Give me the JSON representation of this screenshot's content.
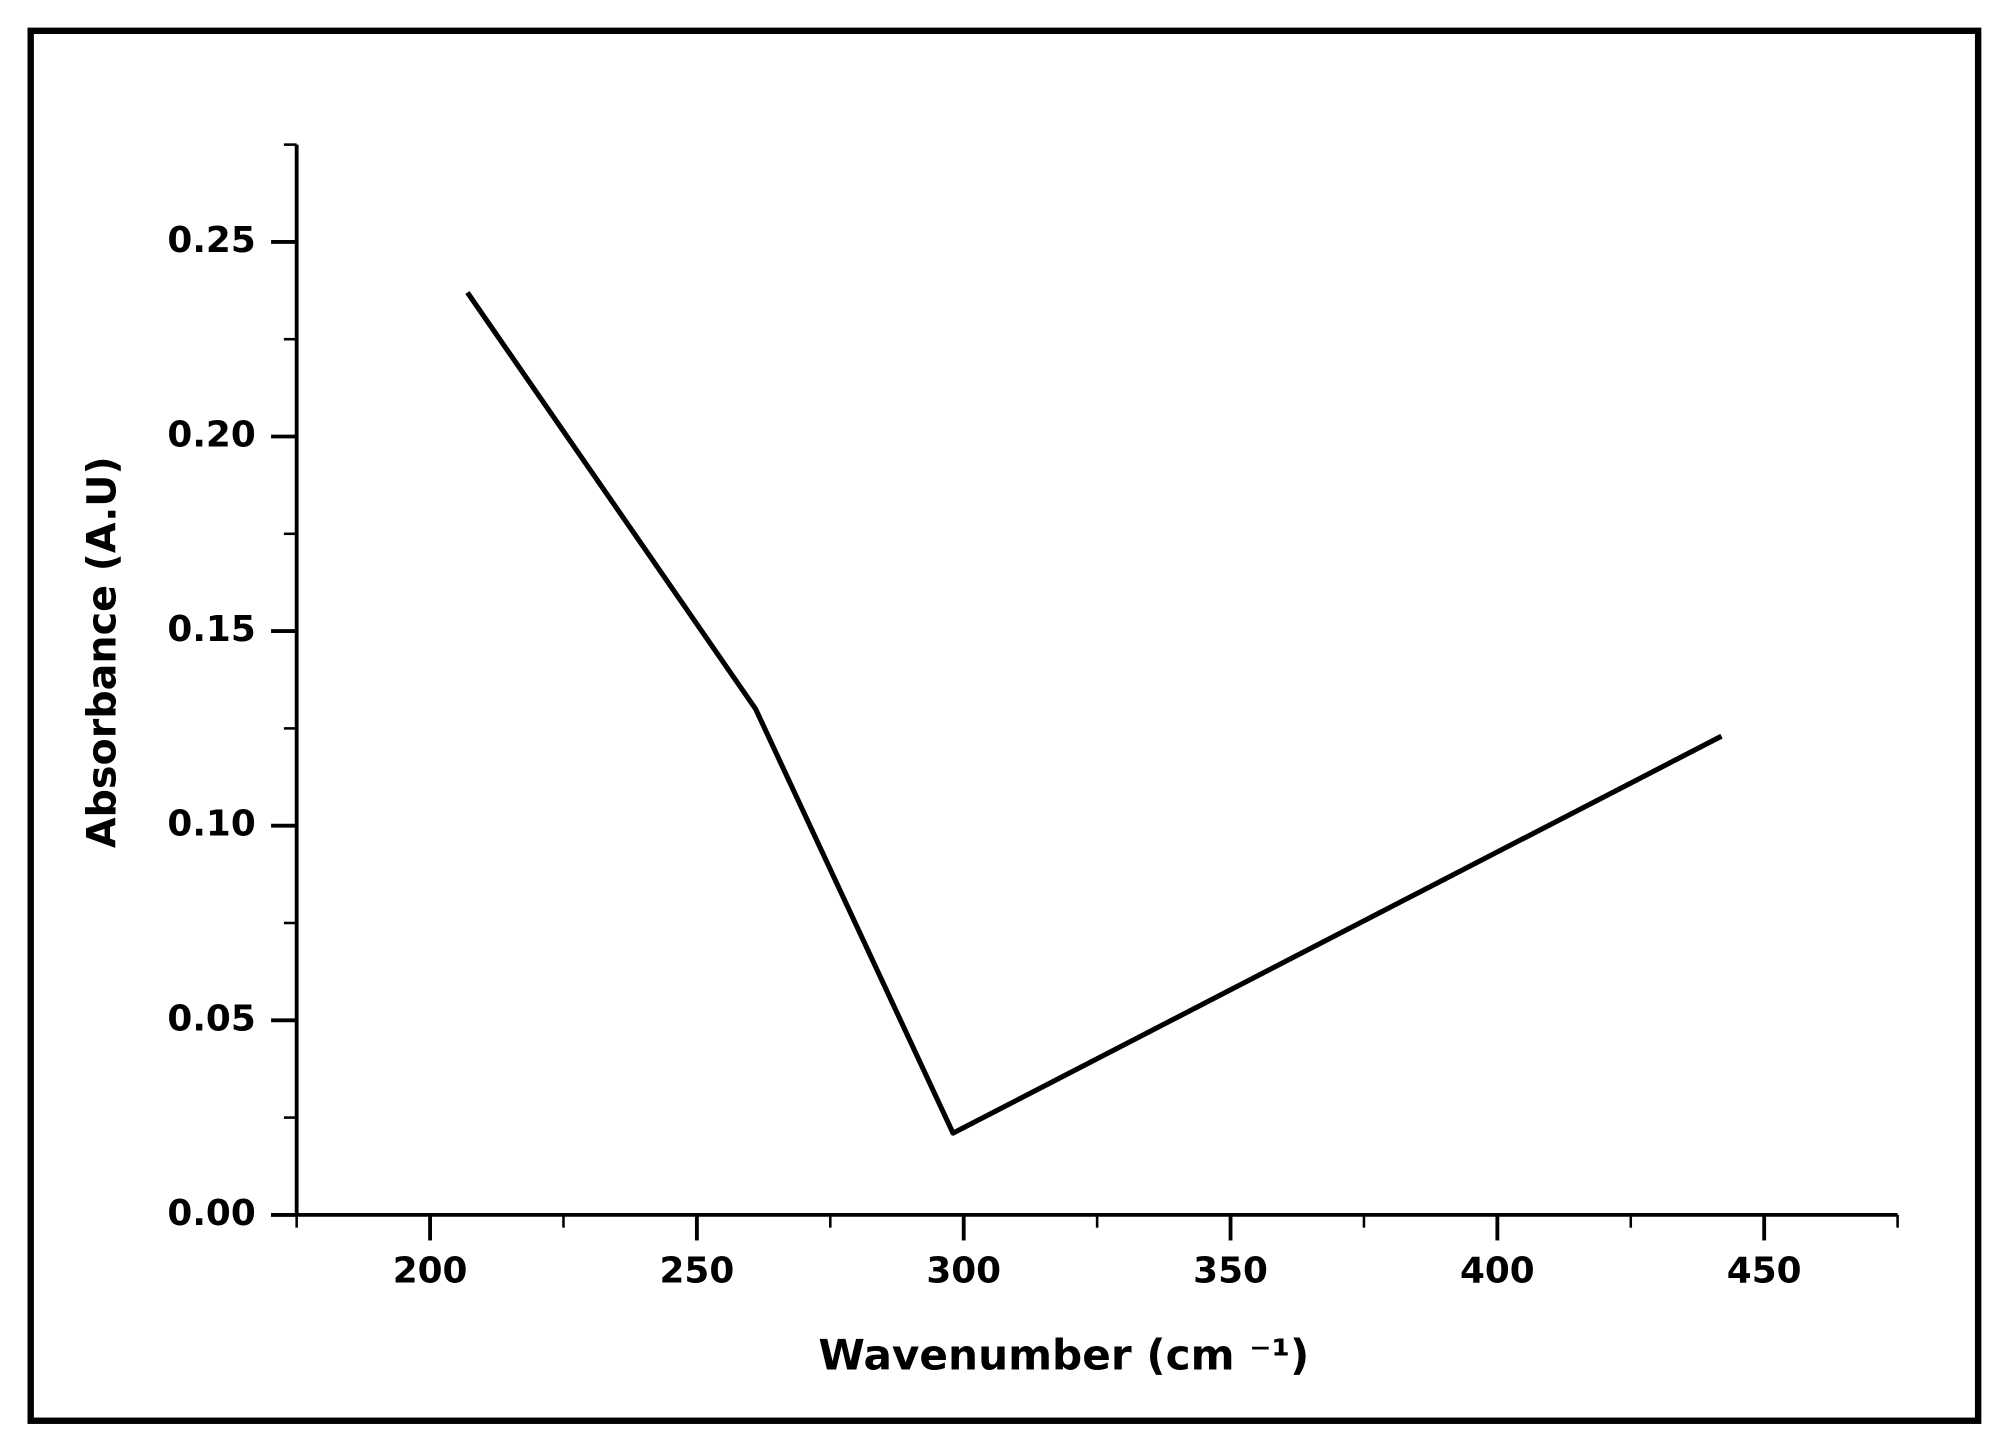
{
  "chart_data": {
    "type": "line",
    "xlabel": "Wavenumber (cm ⁻¹)",
    "ylabel": "Absorbance (A.U)",
    "x": [
      207,
      261,
      298,
      442
    ],
    "series": [
      {
        "color": "#000000",
        "values": [
          0.237,
          0.13,
          0.021,
          0.123
        ]
      }
    ],
    "xlim": [
      175,
      475
    ],
    "xticks": [
      200,
      250,
      300,
      350,
      400,
      450
    ],
    "xminorticks": [
      175,
      225,
      275,
      325,
      375,
      425,
      475
    ],
    "ylim": [
      0,
      0.275
    ],
    "yticks": [
      {
        "value": 0,
        "label": "0.00"
      },
      {
        "value": 0.05,
        "label": "0.05"
      },
      {
        "value": 0.1,
        "label": "0.10"
      },
      {
        "value": 0.15,
        "label": "0.15"
      },
      {
        "value": 0.2,
        "label": "0.20"
      },
      {
        "value": 0.25,
        "label": "0.25"
      }
    ],
    "yminorticks": [
      0.025,
      0.075,
      0.125,
      0.175,
      0.225,
      0.275
    ],
    "grid": false
  }
}
